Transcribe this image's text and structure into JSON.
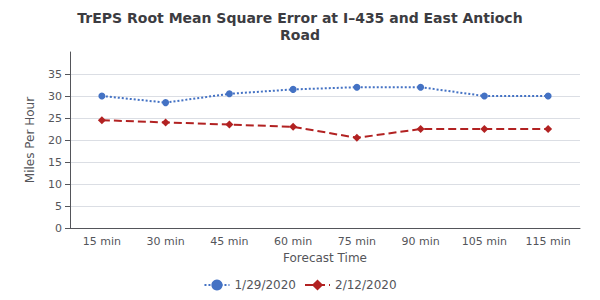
{
  "chart_data": {
    "type": "line",
    "title": "TrEPS Root Mean Square Error at I–435 and East Antioch\nRoad",
    "xlabel": "Forecast Time",
    "ylabel": "Miles Per Hour",
    "categories": [
      "15 min",
      "30 min",
      "45 min",
      "60 min",
      "75 min",
      "90 min",
      "105 min",
      "115 min"
    ],
    "series": [
      {
        "name": "1/29/2020",
        "color": "#4472C4",
        "values": [
          30.0,
          28.5,
          30.5,
          31.5,
          32.0,
          32.0,
          30.0,
          30.0
        ],
        "marker": "circle",
        "line_style": "dotted"
      },
      {
        "name": "2/12/2020",
        "color": "#B22222",
        "values": [
          24.5,
          24.0,
          23.5,
          23.0,
          20.5,
          22.5,
          22.5,
          22.5
        ],
        "marker": "diamond",
        "line_style": "dashed"
      }
    ],
    "ylim": [
      0,
      40
    ],
    "yticks": [
      0,
      5,
      10,
      15,
      20,
      25,
      30,
      35
    ],
    "grid": true,
    "legend": "bottom"
  }
}
